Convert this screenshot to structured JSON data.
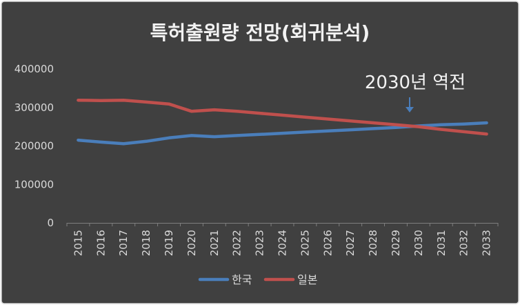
{
  "chart_data": {
    "type": "line",
    "title": "특허출원량 전망(회귀분석)",
    "annotation": "2030년 역전",
    "x": [
      "2015",
      "2016",
      "2017",
      "2018",
      "2019",
      "2020",
      "2021",
      "2022",
      "2023",
      "2024",
      "2025",
      "2026",
      "2027",
      "2028",
      "2029",
      "2030",
      "2031",
      "2032",
      "2033"
    ],
    "ylim": [
      0,
      400000
    ],
    "yticks": [
      "0",
      "100000",
      "200000",
      "300000",
      "400000"
    ],
    "grid": false,
    "legend_position": "bottom",
    "series": [
      {
        "name": "한국",
        "color": "#4a7ebb",
        "values": [
          215000,
          210000,
          206000,
          212000,
          221000,
          227000,
          224000,
          227000,
          230000,
          233000,
          236000,
          239000,
          242000,
          245000,
          248000,
          252000,
          255000,
          257000,
          260000
        ]
      },
      {
        "name": "일본",
        "color": "#c0504d",
        "values": [
          319000,
          318000,
          319000,
          314000,
          309000,
          290000,
          294000,
          290000,
          285000,
          280000,
          275000,
          270000,
          265000,
          260000,
          255000,
          250000,
          243000,
          237000,
          231000
        ]
      }
    ]
  },
  "colors": {
    "background": "#404040",
    "frame": "#d9d9d9",
    "axis": "#7f7f7f",
    "text": "#d9d9d9",
    "title": "#f2f2f2",
    "annotation_arrow": "#4a7ebb"
  }
}
